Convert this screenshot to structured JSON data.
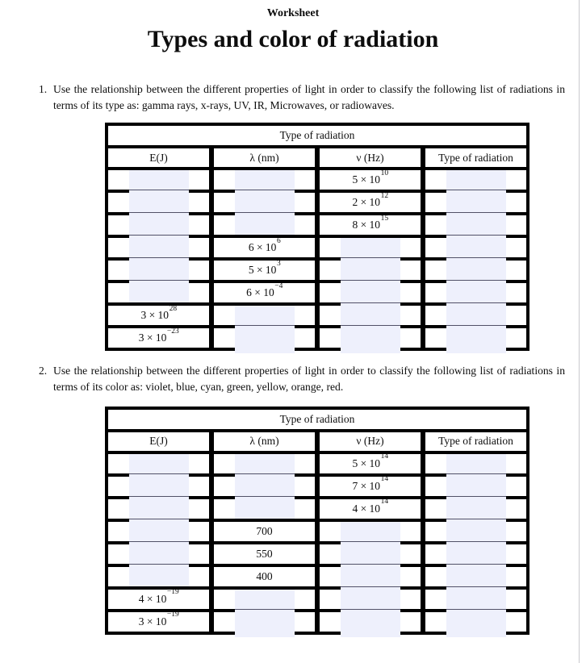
{
  "page": {
    "kicker": "Worksheet",
    "title": "Types and color of radiation"
  },
  "colors": {
    "answer_field_bg": "#eef0fc",
    "table_border": "#000000",
    "field_divider_line": "#515167",
    "page_edge_line": "#c9c9ce"
  },
  "questions": [
    {
      "number": "1.",
      "text": "Use the relationship between the different properties of light in order to classify the following list of radiations in terms of its type as: gamma rays, x-rays, UV, IR, Microwaves, or radiowaves."
    },
    {
      "number": "2.",
      "text": "Use the relationship between the different properties of light in order to classify the following list of radiations in terms of its color as: violet, blue, cyan, green, yellow, orange, red."
    }
  ],
  "tables": [
    {
      "caption": "Type of radiation",
      "columns": [
        "E(J)",
        "λ (nm)",
        "ν (Hz)",
        "Type of radiation"
      ],
      "rows": [
        [
          {
            "f": true
          },
          {
            "f": true
          },
          {
            "v": "5 × 10",
            "sup": "10"
          },
          {
            "f": true
          }
        ],
        [
          {
            "f": true
          },
          {
            "f": true
          },
          {
            "v": "2 × 10",
            "sup": "12"
          },
          {
            "f": true
          }
        ],
        [
          {
            "f": true
          },
          {
            "f": true
          },
          {
            "v": "8 × 10",
            "sup": "15"
          },
          {
            "f": true
          }
        ],
        [
          {
            "f": true
          },
          {
            "v": "6 × 10",
            "sup": "6"
          },
          {
            "f": true
          },
          {
            "f": true
          }
        ],
        [
          {
            "f": true
          },
          {
            "v": "5 × 10",
            "sup": "3"
          },
          {
            "f": true
          },
          {
            "f": true
          }
        ],
        [
          {
            "f": true
          },
          {
            "v": "6 × 10",
            "sup": "−4"
          },
          {
            "f": true
          },
          {
            "f": true
          }
        ],
        [
          {
            "v": "3 × 10",
            "sup": "28"
          },
          {
            "f": true
          },
          {
            "f": true
          },
          {
            "f": true
          }
        ],
        [
          {
            "v": "3 × 10",
            "sup": "−23"
          },
          {
            "f": true
          },
          {
            "f": true
          },
          {
            "f": true
          }
        ]
      ]
    },
    {
      "caption": "Type of radiation",
      "columns": [
        "E(J)",
        "λ (nm)",
        "ν (Hz)",
        "Type of radiation"
      ],
      "rows": [
        [
          {
            "f": true
          },
          {
            "f": true
          },
          {
            "v": "5 × 10",
            "sup": "14"
          },
          {
            "f": true
          }
        ],
        [
          {
            "f": true
          },
          {
            "f": true
          },
          {
            "v": "7 × 10",
            "sup": "14"
          },
          {
            "f": true
          }
        ],
        [
          {
            "f": true
          },
          {
            "f": true
          },
          {
            "v": "4 × 10",
            "sup": "14"
          },
          {
            "f": true
          }
        ],
        [
          {
            "f": true
          },
          {
            "v": "700"
          },
          {
            "f": true
          },
          {
            "f": true
          }
        ],
        [
          {
            "f": true
          },
          {
            "v": "550"
          },
          {
            "f": true
          },
          {
            "f": true
          }
        ],
        [
          {
            "f": true
          },
          {
            "v": "400"
          },
          {
            "f": true
          },
          {
            "f": true
          }
        ],
        [
          {
            "v": "4 × 10",
            "sup": "−19"
          },
          {
            "f": true
          },
          {
            "f": true
          },
          {
            "f": true
          }
        ],
        [
          {
            "v": "3 × 10",
            "sup": "−19"
          },
          {
            "f": true
          },
          {
            "f": true
          },
          {
            "f": true
          }
        ]
      ]
    }
  ]
}
